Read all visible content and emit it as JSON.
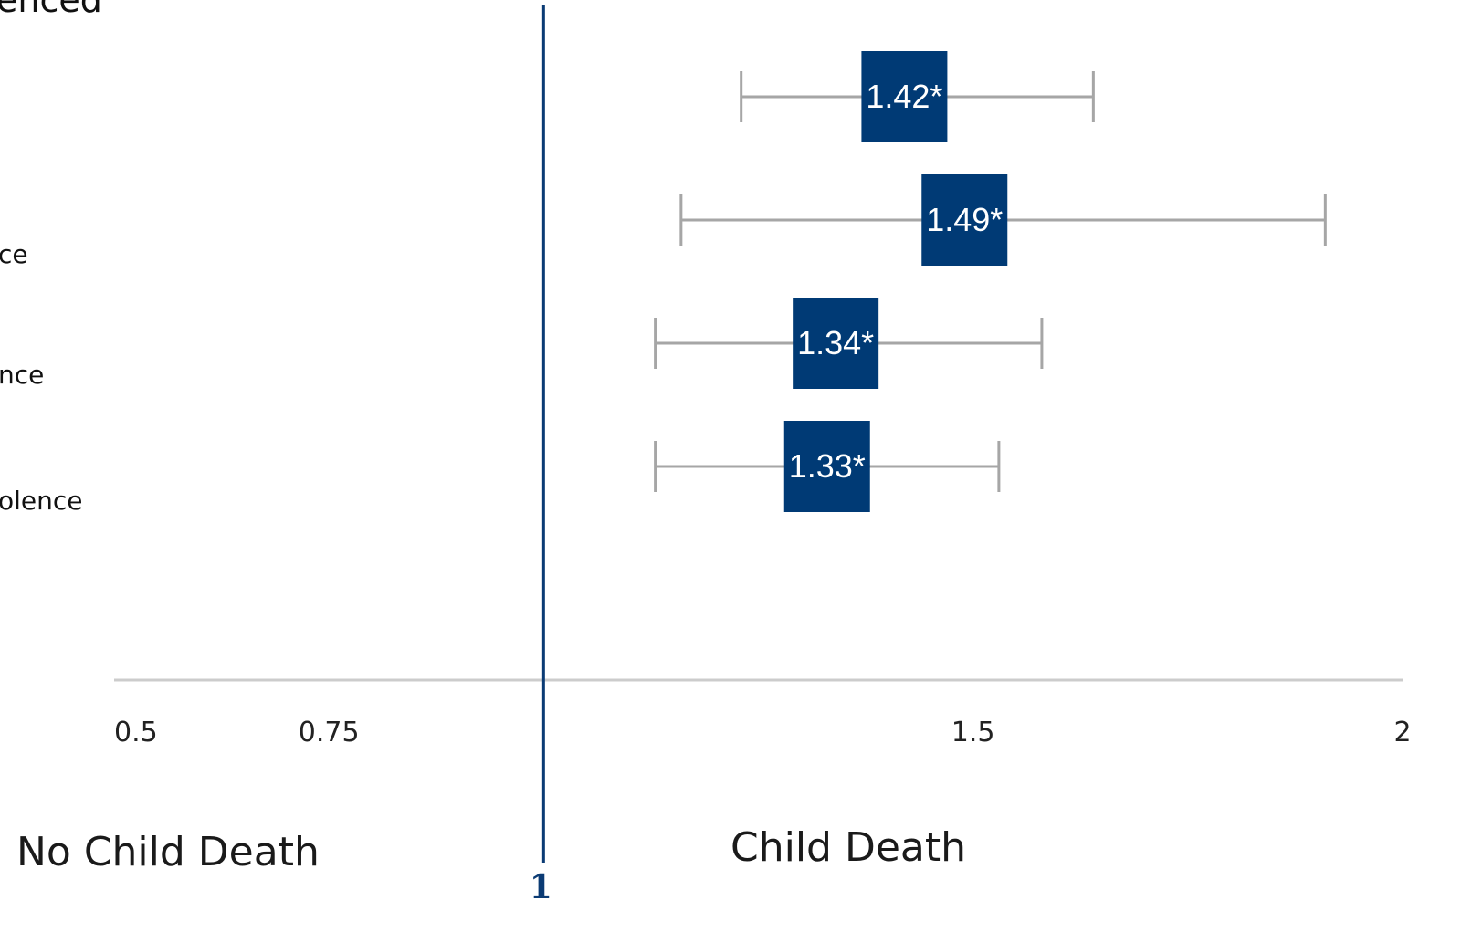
{
  "labels": {
    "title_fragment": "enced",
    "row_fragments": [
      "ce",
      "nce",
      "olence"
    ],
    "left_side": "No Child Death",
    "right_side": "Child Death",
    "reference_value": "1"
  },
  "colors": {
    "marker": "#003a75",
    "reference_line": "#0b3b74",
    "whisker": "#a6a6a6",
    "axis": "#cccccc",
    "estimate_text": "#ffffff"
  },
  "chart_data": {
    "type": "forest",
    "x_ticks": [
      0.5,
      0.75,
      1.5,
      2
    ],
    "x_tick_labels": [
      "0.5",
      "0.75",
      "1.5",
      "2"
    ],
    "xlim": [
      0.5,
      2
    ],
    "reference_line": 1,
    "grid": false,
    "rows": [
      {
        "estimate": 1.42,
        "label": "1.42*",
        "ci_low": 1.23,
        "ci_high": 1.64
      },
      {
        "estimate": 1.49,
        "label": "1.49*",
        "ci_low": 1.16,
        "ci_high": 1.91
      },
      {
        "estimate": 1.34,
        "label": "1.34*",
        "ci_low": 1.13,
        "ci_high": 1.58
      },
      {
        "estimate": 1.33,
        "label": "1.33*",
        "ci_low": 1.13,
        "ci_high": 1.53
      }
    ]
  }
}
